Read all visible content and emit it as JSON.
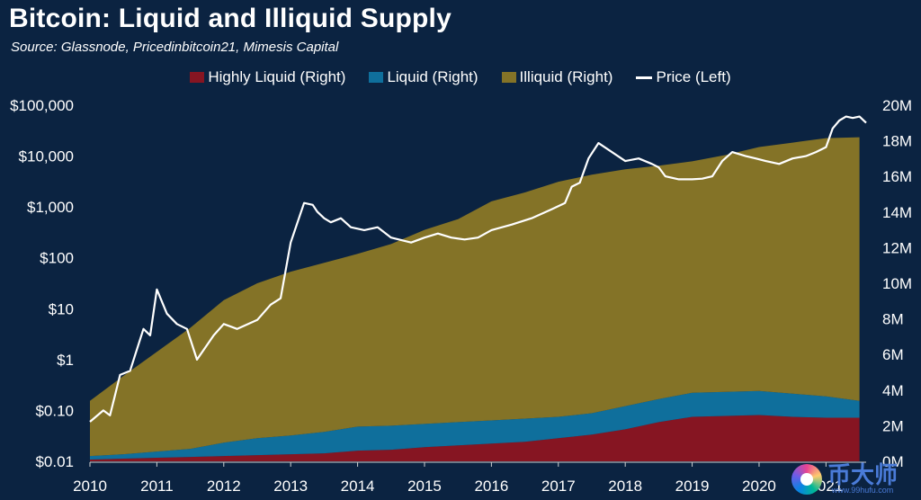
{
  "title": "Bitcoin: Liquid and Illiquid Supply",
  "subtitle": "Source: Glassnode, Pricedinbitcoin21, Mimesis Capital",
  "legend": [
    {
      "label": "Highly Liquid (Right)",
      "color": "#861522",
      "kind": "area"
    },
    {
      "label": "Liquid (Right)",
      "color": "#0f6f9c",
      "kind": "area"
    },
    {
      "label": "Illiquid (Right)",
      "color": "#847327",
      "kind": "area"
    },
    {
      "label": "Price (Left)",
      "color": "#ffffff",
      "kind": "line"
    }
  ],
  "watermark": {
    "text": "币大师",
    "url": "www.99hufu.com"
  },
  "chart_data": {
    "type": "area",
    "title": "Bitcoin: Liquid and Illiquid Supply",
    "subtitle": "Source: Glassnode, Pricedinbitcoin21, Mimesis Capital",
    "x_ticks": [
      "2010",
      "2011",
      "2012",
      "2013",
      "2014",
      "2015",
      "2016",
      "2017",
      "2018",
      "2019",
      "2020",
      "2021"
    ],
    "xlim": [
      2010.0,
      2021.6
    ],
    "left_axis": {
      "scale": "log",
      "range": [
        0.01,
        100000
      ],
      "ticks": [
        0.01,
        0.1,
        1,
        10,
        100,
        1000,
        10000,
        100000
      ],
      "tick_labels": [
        "$0.01",
        "$0.10",
        "$1",
        "$10",
        "$100",
        "$1,000",
        "$10,000",
        "$100,000"
      ]
    },
    "right_axis": {
      "scale": "linear",
      "range": [
        0,
        20000000
      ],
      "ticks": [
        0,
        2000000,
        4000000,
        6000000,
        8000000,
        10000000,
        12000000,
        14000000,
        16000000,
        18000000,
        20000000
      ],
      "tick_labels": [
        "0M",
        "2M",
        "4M",
        "6M",
        "8M",
        "10M",
        "12M",
        "14M",
        "16M",
        "18M",
        "20M"
      ]
    },
    "grid": false,
    "legend_position": "top-center",
    "stacked": true,
    "series": [
      {
        "name": "Highly Liquid (Right)",
        "axis": "right",
        "color": "#861522",
        "x": [
          2010.0,
          2010.5,
          2011.0,
          2011.5,
          2012.0,
          2012.5,
          2013.0,
          2013.5,
          2014.0,
          2014.5,
          2015.0,
          2015.5,
          2016.0,
          2016.5,
          2017.0,
          2017.5,
          2018.0,
          2018.5,
          2019.0,
          2019.5,
          2020.0,
          2020.5,
          2021.0,
          2021.5
        ],
        "values": [
          100000,
          150000,
          200000,
          250000,
          300000,
          350000,
          400000,
          450000,
          600000,
          650000,
          800000,
          900000,
          1000000,
          1100000,
          1300000,
          1500000,
          1800000,
          2200000,
          2500000,
          2550000,
          2600000,
          2500000,
          2450000,
          2450000
        ]
      },
      {
        "name": "Liquid (Right)",
        "axis": "right",
        "color": "#0f6f9c",
        "x": [
          2010.0,
          2010.5,
          2011.0,
          2011.5,
          2012.0,
          2012.5,
          2013.0,
          2013.5,
          2014.0,
          2014.5,
          2015.0,
          2015.5,
          2016.0,
          2016.5,
          2017.0,
          2017.5,
          2018.0,
          2018.5,
          2019.0,
          2019.5,
          2020.0,
          2020.5,
          2021.0,
          2021.5
        ],
        "values": [
          200000,
          250000,
          350000,
          450000,
          750000,
          950000,
          1050000,
          1200000,
          1350000,
          1350000,
          1300000,
          1300000,
          1300000,
          1300000,
          1200000,
          1200000,
          1300000,
          1300000,
          1350000,
          1350000,
          1350000,
          1300000,
          1200000,
          950000
        ]
      },
      {
        "name": "Illiquid (Right)",
        "axis": "right",
        "color": "#847327",
        "x": [
          2010.0,
          2010.5,
          2011.0,
          2011.5,
          2012.0,
          2012.5,
          2013.0,
          2013.5,
          2014.0,
          2014.5,
          2015.0,
          2015.5,
          2016.0,
          2016.5,
          2017.0,
          2017.5,
          2018.0,
          2018.5,
          2019.0,
          2019.5,
          2020.0,
          2020.5,
          2021.0,
          2021.5
        ],
        "values": [
          3100000,
          4400000,
          5600000,
          6800000,
          8000000,
          8700000,
          9200000,
          9500000,
          9700000,
          10200000,
          10900000,
          11400000,
          12300000,
          12700000,
          13200000,
          13400000,
          13300000,
          13100000,
          13000000,
          13300000,
          13700000,
          14100000,
          14500000,
          14800000
        ]
      },
      {
        "name": "Price (Left)",
        "axis": "left",
        "color": "#ffffff",
        "x": [
          2010.0,
          2010.2,
          2010.3,
          2010.45,
          2010.6,
          2010.8,
          2010.9,
          2011.0,
          2011.15,
          2011.3,
          2011.45,
          2011.6,
          2011.85,
          2012.0,
          2012.2,
          2012.5,
          2012.7,
          2012.85,
          2013.0,
          2013.2,
          2013.33,
          2013.4,
          2013.5,
          2013.6,
          2013.75,
          2013.9,
          2014.1,
          2014.3,
          2014.5,
          2014.8,
          2015.0,
          2015.2,
          2015.4,
          2015.6,
          2015.8,
          2016.0,
          2016.3,
          2016.6,
          2016.9,
          2017.1,
          2017.2,
          2017.32,
          2017.45,
          2017.6,
          2017.8,
          2018.0,
          2018.2,
          2018.4,
          2018.5,
          2018.6,
          2018.8,
          2019.0,
          2019.15,
          2019.3,
          2019.45,
          2019.6,
          2019.8,
          2019.95,
          2020.1,
          2020.3,
          2020.5,
          2020.7,
          2020.85,
          2021.0,
          2021.1,
          2021.2,
          2021.3,
          2021.4,
          2021.5,
          2021.6
        ],
        "values": [
          0.06,
          0.1,
          0.08,
          0.5,
          0.6,
          4,
          3,
          24,
          8,
          5,
          4,
          1,
          3,
          5,
          4,
          6,
          12,
          16,
          200,
          1200,
          1100,
          800,
          600,
          500,
          600,
          400,
          350,
          400,
          250,
          200,
          250,
          300,
          250,
          230,
          250,
          350,
          450,
          600,
          900,
          1200,
          2500,
          3000,
          9000,
          18000,
          12000,
          8000,
          9000,
          7000,
          6000,
          4000,
          3500,
          3500,
          3600,
          4000,
          8000,
          12000,
          10000,
          9000,
          8000,
          7000,
          9000,
          10000,
          12000,
          15000,
          35000,
          50000,
          60000,
          56000,
          60000,
          45000
        ]
      }
    ]
  }
}
